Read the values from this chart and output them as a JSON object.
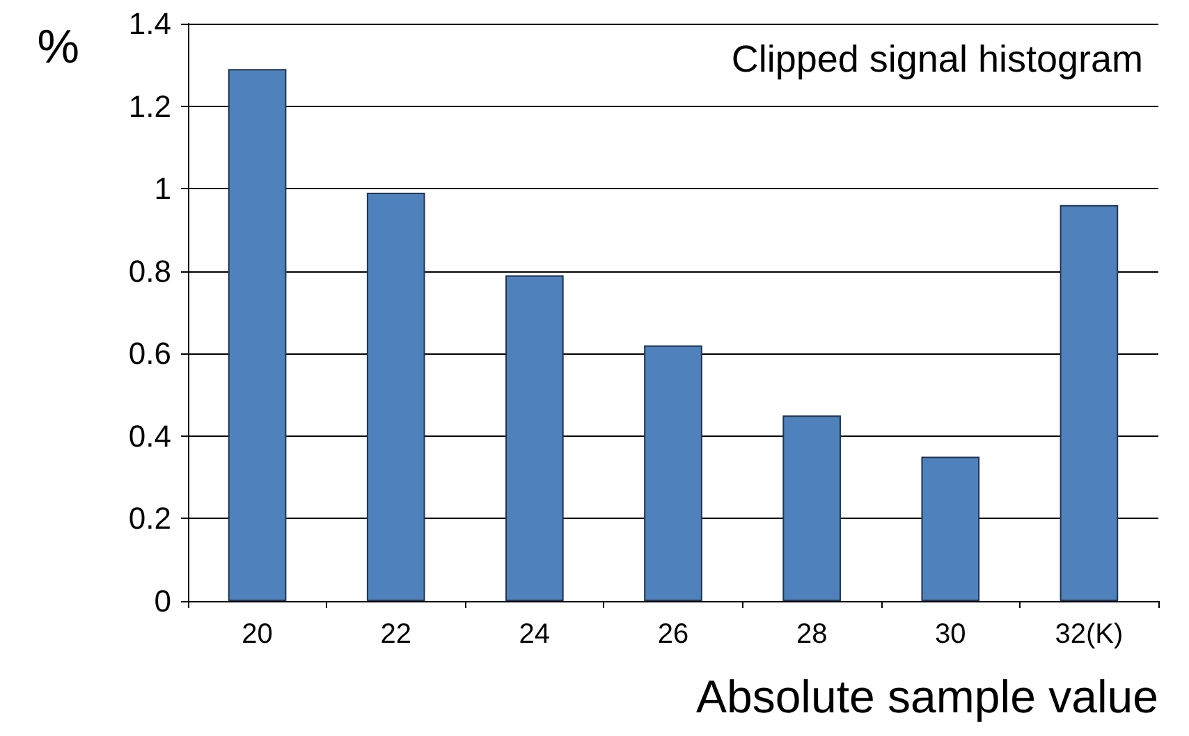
{
  "chart_data": {
    "type": "bar",
    "title": "Clipped signal histogram",
    "xlabel": "Absolute sample value",
    "ylabel": "%",
    "categories": [
      "20",
      "22",
      "24",
      "26",
      "28",
      "30",
      "32(K)"
    ],
    "series": [
      {
        "color": "#4f81bd",
        "values": [
          1.29,
          0.99,
          0.79,
          0.62,
          0.45,
          0.35,
          0.96
        ]
      }
    ],
    "ylim": [
      0,
      1.4
    ],
    "yticks": [
      0,
      0.2,
      0.4,
      0.6,
      0.8,
      1,
      1.2,
      1.4
    ],
    "grid": "y"
  }
}
